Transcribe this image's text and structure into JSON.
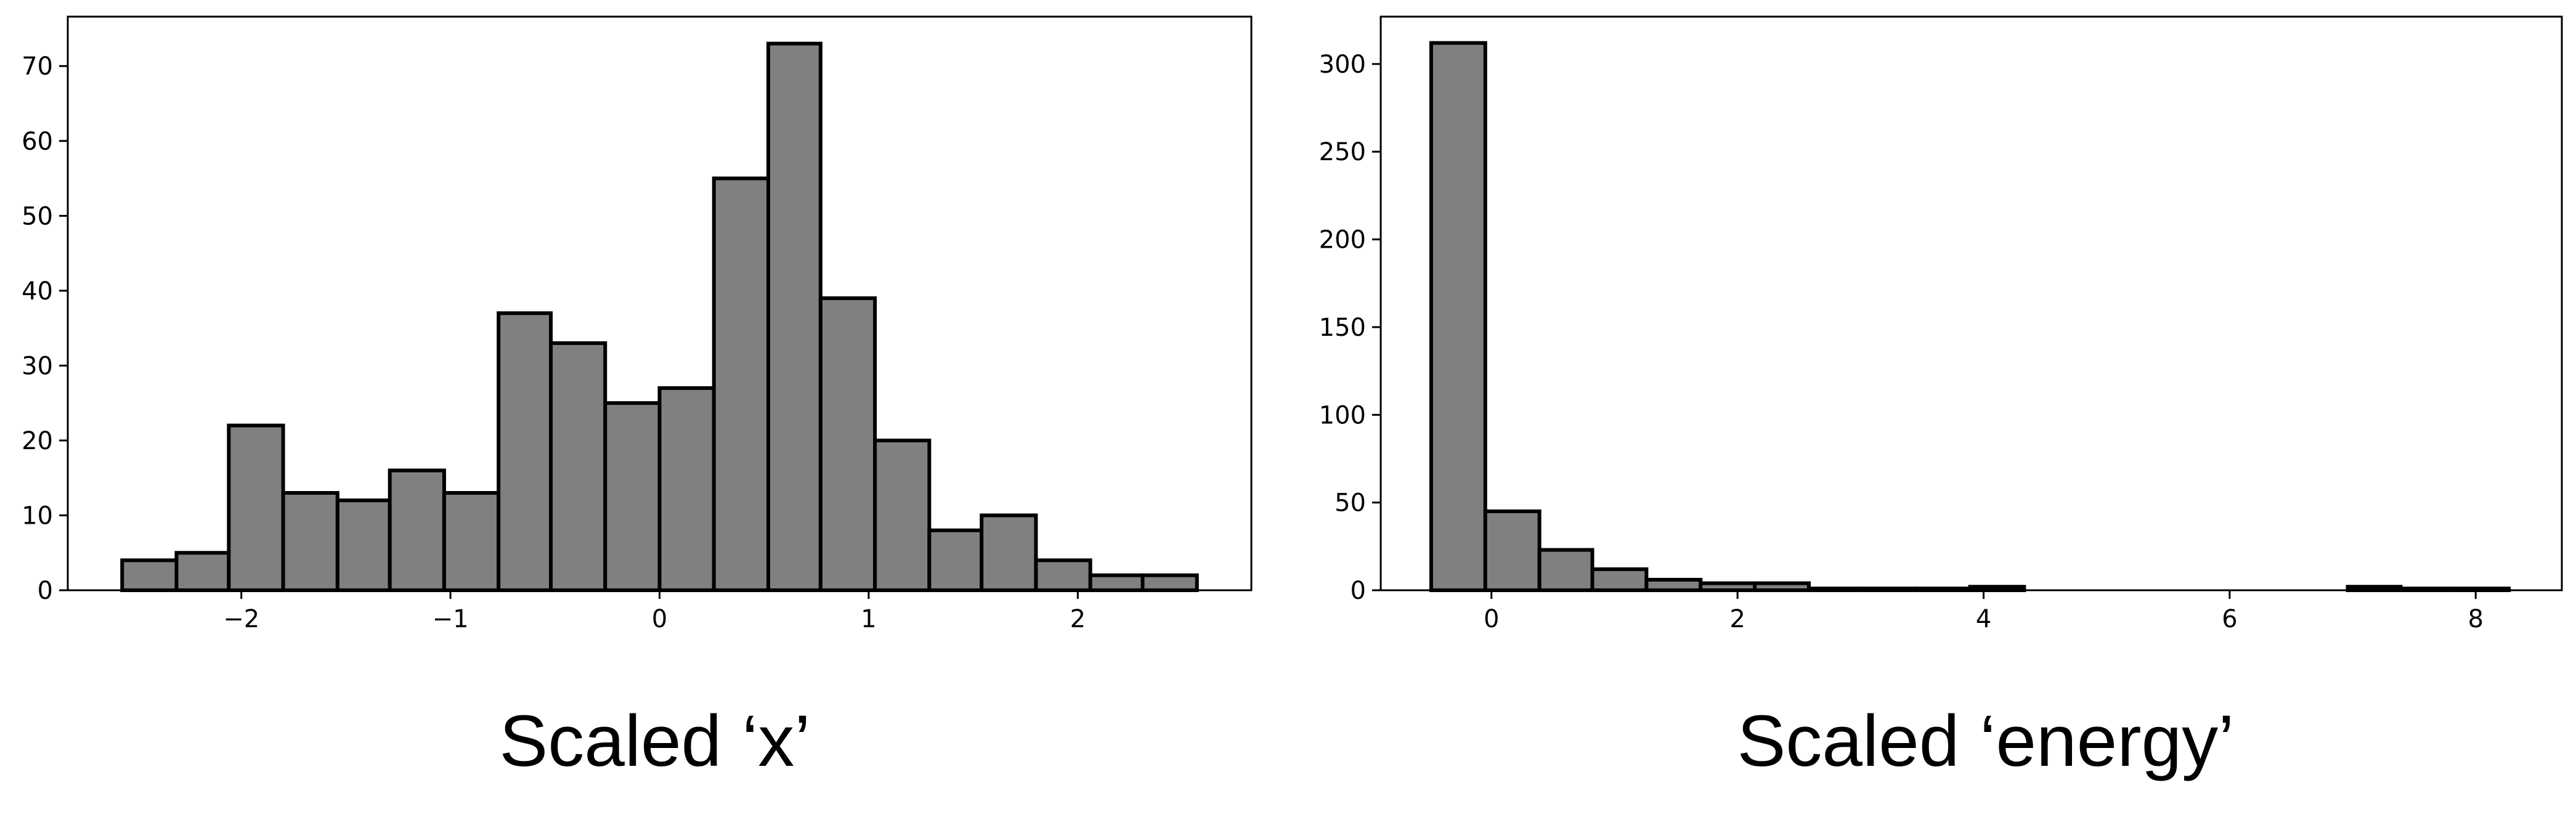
{
  "colors": {
    "bar_fill": "#808080",
    "bar_edge": "#000000",
    "axes": "#000000",
    "background": "#ffffff"
  },
  "captions": [
    "Scaled ‘x’",
    "Scaled ‘energy’"
  ],
  "chart_data": [
    {
      "type": "bar",
      "title": "",
      "xlabel": "",
      "ylabel": "",
      "caption": "Scaled ‘x’",
      "grid": false,
      "bin_edges": [
        -2.57,
        -2.31,
        -2.06,
        -1.8,
        -1.54,
        -1.29,
        -1.03,
        -0.77,
        -0.52,
        -0.26,
        0.0,
        0.26,
        0.52,
        0.77,
        1.03,
        1.29,
        1.54,
        1.8,
        2.06,
        2.31,
        2.57
      ],
      "values": [
        4,
        5,
        22,
        13,
        12,
        16,
        13,
        37,
        33,
        25,
        27,
        55,
        73,
        39,
        20,
        8,
        10,
        4,
        2,
        2
      ],
      "xlim": [
        -2.83,
        2.83
      ],
      "ylim": [
        0,
        76.6
      ],
      "xticks": [
        -2,
        -1,
        0,
        1,
        2
      ],
      "xtick_labels": [
        "−2",
        "−1",
        "0",
        "1",
        "2"
      ],
      "yticks": [
        0,
        10,
        20,
        30,
        40,
        50,
        60,
        70
      ],
      "ytick_labels": [
        "0",
        "10",
        "20",
        "30",
        "40",
        "50",
        "60",
        "70"
      ]
    },
    {
      "type": "bar",
      "title": "",
      "xlabel": "",
      "ylabel": "",
      "caption": "Scaled ‘energy’",
      "grid": false,
      "bin_edges": [
        -0.49,
        -0.05,
        0.39,
        0.82,
        1.26,
        1.7,
        2.14,
        2.58,
        3.01,
        3.45,
        3.89,
        4.33,
        4.77,
        5.2,
        5.64,
        6.08,
        6.52,
        6.96,
        7.39,
        7.83,
        8.27
      ],
      "values": [
        312,
        45,
        23,
        12,
        6,
        4,
        4,
        1,
        1,
        1,
        2,
        0,
        0,
        0,
        0,
        0,
        0,
        2,
        1,
        1
      ],
      "xlim": [
        -0.9,
        8.7
      ],
      "ylim": [
        0,
        327
      ],
      "xticks": [
        0,
        2,
        4,
        6,
        8
      ],
      "xtick_labels": [
        "0",
        "2",
        "4",
        "6",
        "8"
      ],
      "yticks": [
        0,
        50,
        100,
        150,
        200,
        250,
        300
      ],
      "ytick_labels": [
        "0",
        "50",
        "100",
        "150",
        "200",
        "250",
        "300"
      ]
    }
  ]
}
